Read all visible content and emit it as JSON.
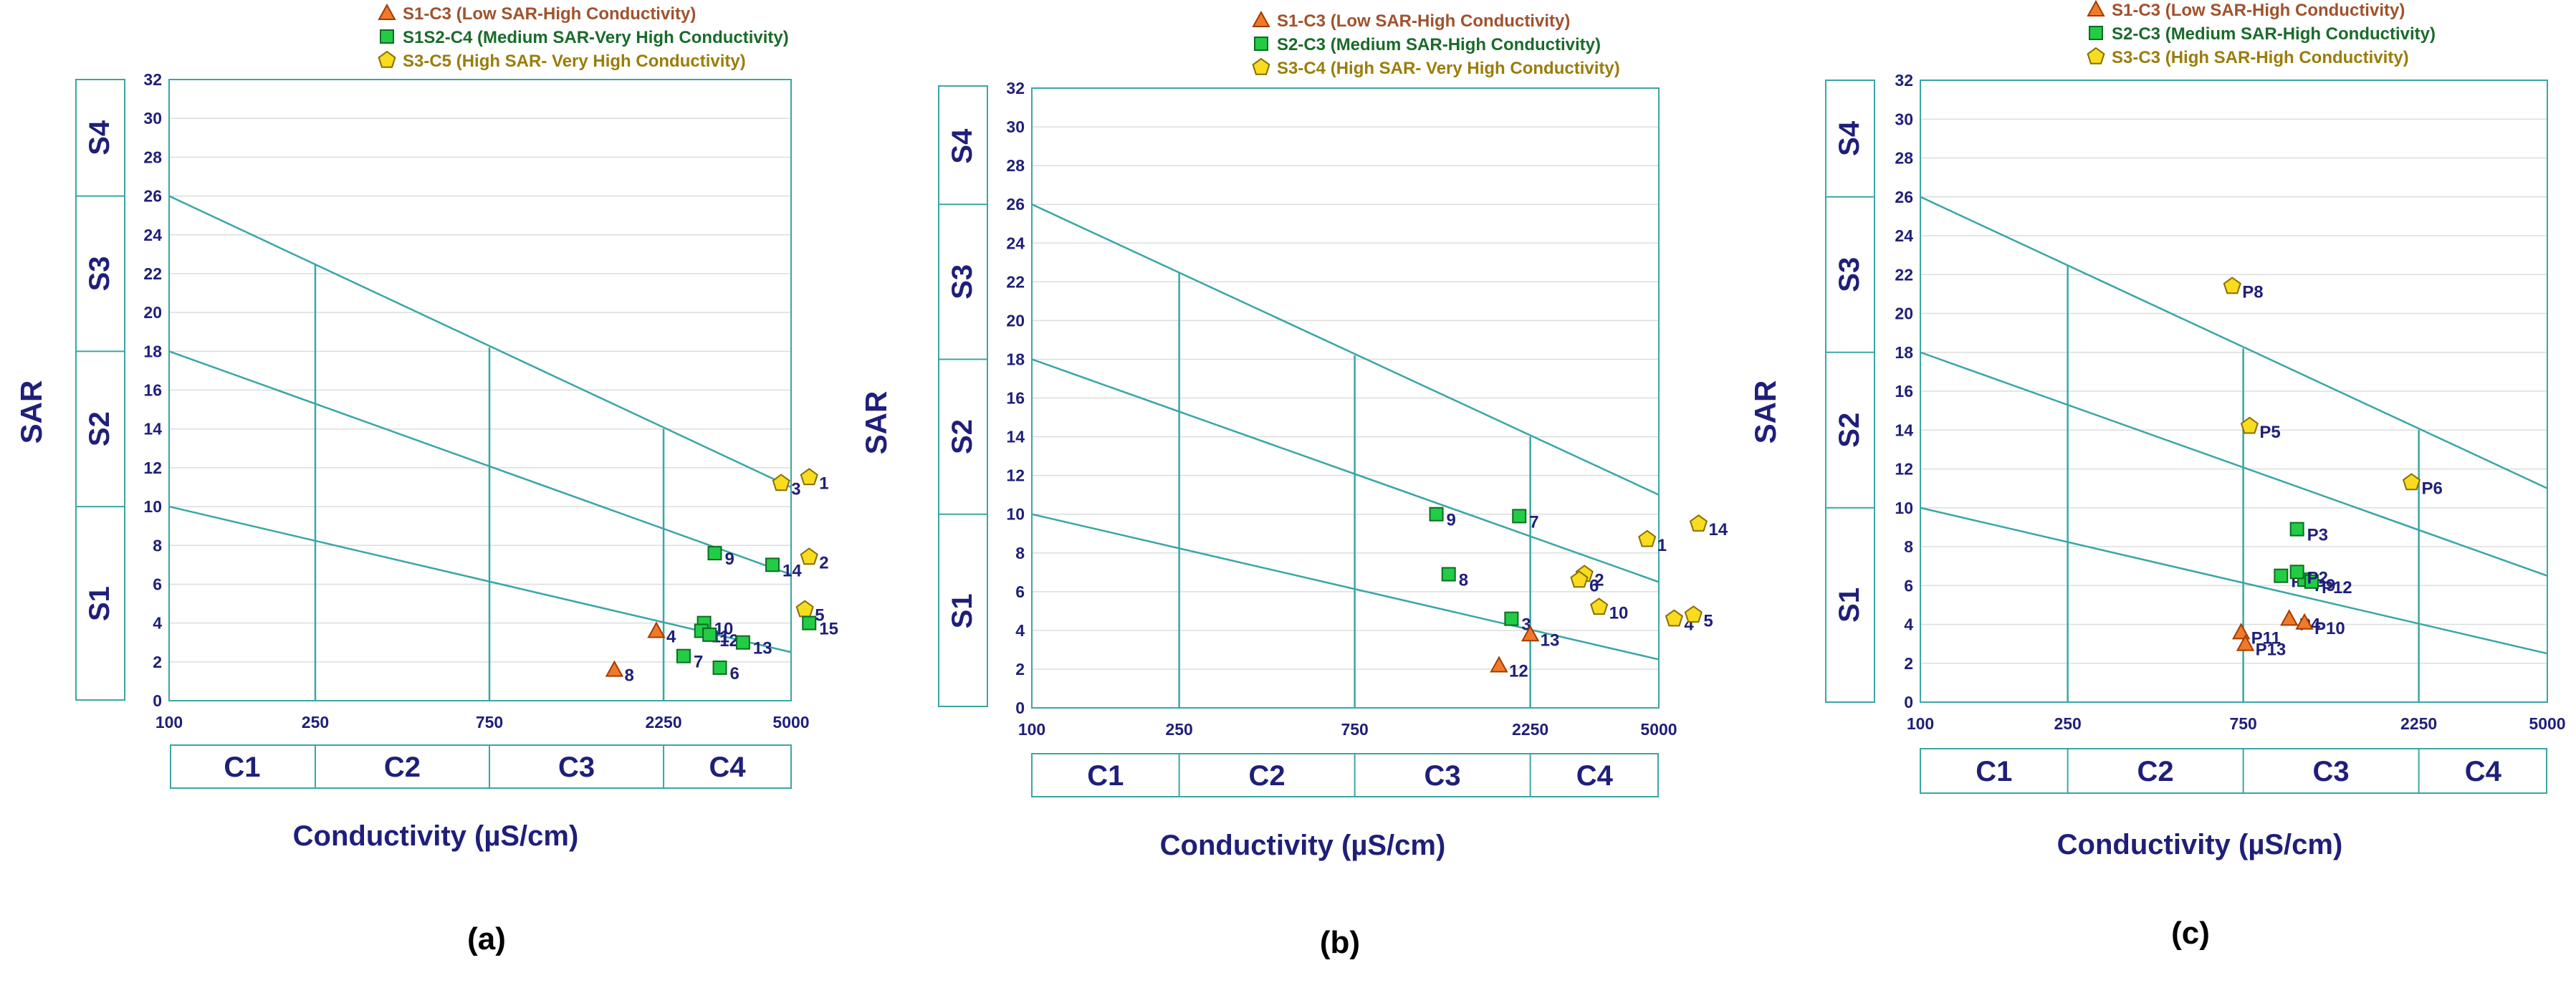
{
  "chart_data": [
    {
      "type": "scatter",
      "subtitle": "(a)",
      "xlabel": "Conductivity (µS/cm)",
      "ylabel": "SAR",
      "x_ticks": [
        "100",
        "250",
        "750",
        "2250",
        "5000"
      ],
      "y_ticks": [
        "0",
        "2",
        "4",
        "6",
        "8",
        "10",
        "12",
        "14",
        "16",
        "18",
        "20",
        "22",
        "24",
        "26",
        "28",
        "30",
        "32"
      ],
      "ylim": [
        0,
        32
      ],
      "s_classes": [
        "S1",
        "S2",
        "S3",
        "S4"
      ],
      "c_classes": [
        "C1",
        "C2",
        "C3",
        "C4"
      ],
      "legend": [
        {
          "label": "S1-C3 (Low SAR-High Conductivity)",
          "marker": "triangle",
          "color": "#a0522d"
        },
        {
          "label": "S1S2-C4 (Medium SAR-Very High Conductivity)",
          "marker": "square",
          "color": "#1a6b2a"
        },
        {
          "label": "S3-C5 (High SAR- Very High Conductivity)",
          "marker": "pentagon",
          "color": "#9a7d0a"
        }
      ],
      "points": [
        {
          "label": "1",
          "conductivity": 5600,
          "sar": 11.5,
          "marker": "pentagon"
        },
        {
          "label": "2",
          "conductivity": 5600,
          "sar": 7.4,
          "marker": "pentagon"
        },
        {
          "label": "3",
          "conductivity": 4700,
          "sar": 11.2,
          "marker": "pentagon"
        },
        {
          "label": "4",
          "conductivity": 2150,
          "sar": 3.6,
          "marker": "triangle"
        },
        {
          "label": "5",
          "conductivity": 5450,
          "sar": 4.7,
          "marker": "pentagon"
        },
        {
          "label": "6",
          "conductivity": 3200,
          "sar": 1.7,
          "marker": "square"
        },
        {
          "label": "7",
          "conductivity": 2550,
          "sar": 2.3,
          "marker": "square"
        },
        {
          "label": "8",
          "conductivity": 1650,
          "sar": 1.6,
          "marker": "triangle"
        },
        {
          "label": "9",
          "conductivity": 3100,
          "sar": 7.6,
          "marker": "square"
        },
        {
          "label": "10",
          "conductivity": 2900,
          "sar": 4.0,
          "marker": "square"
        },
        {
          "label": "11",
          "conductivity": 2850,
          "sar": 3.6,
          "marker": "square"
        },
        {
          "label": "12",
          "conductivity": 3000,
          "sar": 3.4,
          "marker": "square"
        },
        {
          "label": "13",
          "conductivity": 3700,
          "sar": 3.0,
          "marker": "square"
        },
        {
          "label": "14",
          "conductivity": 4450,
          "sar": 7.0,
          "marker": "square"
        },
        {
          "label": "15",
          "conductivity": 5600,
          "sar": 4.0,
          "marker": "square"
        }
      ]
    },
    {
      "type": "scatter",
      "subtitle": "(b)",
      "xlabel": "Conductivity (µS/cm)",
      "ylabel": "SAR",
      "x_ticks": [
        "100",
        "250",
        "750",
        "2250",
        "5000"
      ],
      "y_ticks": [
        "0",
        "2",
        "4",
        "6",
        "8",
        "10",
        "12",
        "14",
        "16",
        "18",
        "20",
        "22",
        "24",
        "26",
        "28",
        "30",
        "32"
      ],
      "ylim": [
        0,
        32
      ],
      "s_classes": [
        "S1",
        "S2",
        "S3",
        "S4"
      ],
      "c_classes": [
        "C1",
        "C2",
        "C3",
        "C4"
      ],
      "legend": [
        {
          "label": "S1-C3 (Low SAR-High Conductivity)",
          "marker": "triangle",
          "color": "#a0522d"
        },
        {
          "label": "S2-C3 (Medium SAR-High Conductivity)",
          "marker": "square",
          "color": "#1a6b2a"
        },
        {
          "label": "S3-C4 (High SAR- Very High Conductivity)",
          "marker": "pentagon",
          "color": "#9a7d0a"
        }
      ],
      "points": [
        {
          "label": "1",
          "conductivity": 4650,
          "sar": 8.7,
          "marker": "pentagon"
        },
        {
          "label": "2",
          "conductivity": 3150,
          "sar": 6.9,
          "marker": "pentagon"
        },
        {
          "label": "3",
          "conductivity": 2000,
          "sar": 4.6,
          "marker": "square"
        },
        {
          "label": "4",
          "conductivity": 5500,
          "sar": 4.6,
          "marker": "pentagon"
        },
        {
          "label": "5",
          "conductivity": 6200,
          "sar": 4.8,
          "marker": "pentagon"
        },
        {
          "label": "6",
          "conductivity": 3050,
          "sar": 6.6,
          "marker": "pentagon"
        },
        {
          "label": "7",
          "conductivity": 2100,
          "sar": 9.9,
          "marker": "square"
        },
        {
          "label": "8",
          "conductivity": 1350,
          "sar": 6.9,
          "marker": "square"
        },
        {
          "label": "9",
          "conductivity": 1250,
          "sar": 10.0,
          "marker": "square"
        },
        {
          "label": "10",
          "conductivity": 3450,
          "sar": 5.2,
          "marker": "pentagon"
        },
        {
          "label": "12",
          "conductivity": 1850,
          "sar": 2.2,
          "marker": "triangle"
        },
        {
          "label": "13",
          "conductivity": 2250,
          "sar": 3.8,
          "marker": "triangle"
        },
        {
          "label": "14",
          "conductivity": 6400,
          "sar": 9.5,
          "marker": "pentagon"
        }
      ]
    },
    {
      "type": "scatter",
      "subtitle": "(c)",
      "xlabel": "Conductivity (µS/cm)",
      "ylabel": "SAR",
      "x_ticks": [
        "100",
        "250",
        "750",
        "2250",
        "5000"
      ],
      "y_ticks": [
        "0",
        "2",
        "4",
        "6",
        "8",
        "10",
        "12",
        "14",
        "16",
        "18",
        "20",
        "22",
        "24",
        "26",
        "28",
        "30",
        "32"
      ],
      "ylim": [
        0,
        32
      ],
      "s_classes": [
        "S1",
        "S2",
        "S3",
        "S4"
      ],
      "c_classes": [
        "C1",
        "C2",
        "C3",
        "C4"
      ],
      "legend": [
        {
          "label": "S1-C3 (Low SAR-High Conductivity)",
          "marker": "triangle",
          "color": "#a0522d"
        },
        {
          "label": "S2-C3 (Medium SAR-High Conductivity)",
          "marker": "square",
          "color": "#1a6b2a"
        },
        {
          "label": "S3-C3 (High SAR-High Conductivity)",
          "marker": "pentagon",
          "color": "#9a7d0a"
        }
      ],
      "points": [
        {
          "label": "P1",
          "conductivity": 950,
          "sar": 6.5,
          "marker": "square"
        },
        {
          "label": "P3",
          "conductivity": 1050,
          "sar": 8.9,
          "marker": "square"
        },
        {
          "label": "P4",
          "conductivity": 1000,
          "sar": 4.3,
          "marker": "triangle"
        },
        {
          "label": "P5",
          "conductivity": 780,
          "sar": 14.2,
          "marker": "pentagon"
        },
        {
          "label": "P6",
          "conductivity": 2150,
          "sar": 11.3,
          "marker": "pentagon"
        },
        {
          "label": "P8",
          "conductivity": 700,
          "sar": 21.4,
          "marker": "pentagon"
        },
        {
          "label": "P9",
          "conductivity": 1100,
          "sar": 6.3,
          "marker": "square"
        },
        {
          "label": "P10",
          "conductivity": 1100,
          "sar": 4.1,
          "marker": "triangle"
        },
        {
          "label": "P11",
          "conductivity": 740,
          "sar": 3.6,
          "marker": "triangle"
        },
        {
          "label": "P12",
          "conductivity": 1150,
          "sar": 6.2,
          "marker": "square"
        },
        {
          "label": "P13",
          "conductivity": 760,
          "sar": 3.0,
          "marker": "triangle"
        },
        {
          "label": "P2",
          "conductivity": 1050,
          "sar": 6.7,
          "marker": "square"
        }
      ]
    }
  ],
  "colors": {
    "frame": "#3aa6a6",
    "grid": "#dddddd",
    "text": "#1f1f7a",
    "triangle_fill": "#f07a2a",
    "triangle_stroke": "#a33b00",
    "square_fill": "#22cc44",
    "square_stroke": "#0e6b23",
    "pentagon_fill": "#f7dc1f",
    "pentagon_stroke": "#8a6d00"
  }
}
